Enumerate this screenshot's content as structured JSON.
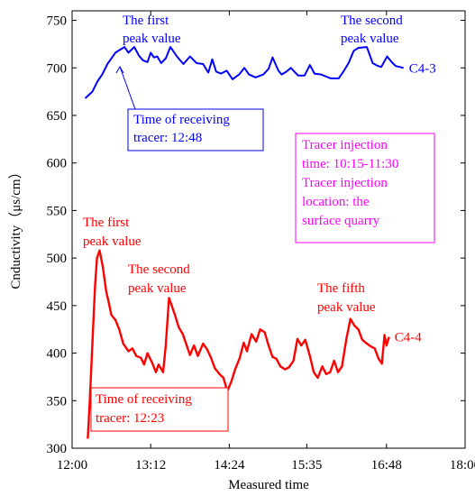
{
  "chart_data": {
    "type": "line",
    "xlabel": "Measured time",
    "ylabel": "Cnductivity（μs/cm）",
    "x_unit": "hours of day",
    "xlim": [
      12.0,
      18.0
    ],
    "ylim": [
      300,
      760
    ],
    "x_ticks": [
      {
        "value": 12.0,
        "label": "12:00"
      },
      {
        "value": 13.2,
        "label": "13:12"
      },
      {
        "value": 14.4,
        "label": "14:24"
      },
      {
        "value": 15.583,
        "label": "15:35"
      },
      {
        "value": 16.8,
        "label": "16:48"
      },
      {
        "value": 18.0,
        "label": "18:00"
      }
    ],
    "y_ticks": [
      300,
      350,
      400,
      450,
      500,
      550,
      600,
      650,
      700,
      750
    ],
    "series": [
      {
        "name": "C4-3",
        "color": "#0000ff",
        "points": [
          [
            12.2,
            668
          ],
          [
            12.31,
            675
          ],
          [
            12.39,
            686
          ],
          [
            12.46,
            693
          ],
          [
            12.54,
            704
          ],
          [
            12.66,
            716
          ],
          [
            12.8,
            722
          ],
          [
            12.86,
            716
          ],
          [
            12.95,
            722
          ],
          [
            13.02,
            713
          ],
          [
            13.08,
            708
          ],
          [
            13.15,
            706
          ],
          [
            13.2,
            716
          ],
          [
            13.25,
            711
          ],
          [
            13.3,
            712
          ],
          [
            13.36,
            705
          ],
          [
            13.43,
            710
          ],
          [
            13.5,
            722
          ],
          [
            13.6,
            712
          ],
          [
            13.7,
            704
          ],
          [
            13.8,
            712
          ],
          [
            13.9,
            705
          ],
          [
            14.0,
            704
          ],
          [
            14.08,
            695
          ],
          [
            14.14,
            709
          ],
          [
            14.2,
            696
          ],
          [
            14.27,
            694
          ],
          [
            14.36,
            697
          ],
          [
            14.45,
            688
          ],
          [
            14.55,
            693
          ],
          [
            14.63,
            700
          ],
          [
            14.7,
            693
          ],
          [
            14.8,
            690
          ],
          [
            14.92,
            693
          ],
          [
            15.0,
            699
          ],
          [
            15.06,
            711
          ],
          [
            15.15,
            697
          ],
          [
            15.2,
            693
          ],
          [
            15.27,
            696
          ],
          [
            15.34,
            700
          ],
          [
            15.45,
            692
          ],
          [
            15.55,
            692
          ],
          [
            15.63,
            703
          ],
          [
            15.7,
            694
          ],
          [
            15.8,
            693
          ],
          [
            15.95,
            689
          ],
          [
            16.07,
            689
          ],
          [
            16.15,
            697
          ],
          [
            16.22,
            705
          ],
          [
            16.3,
            718
          ],
          [
            16.37,
            721
          ],
          [
            16.5,
            722
          ],
          [
            16.59,
            705
          ],
          [
            16.67,
            702
          ],
          [
            16.72,
            701
          ],
          [
            16.81,
            712
          ],
          [
            16.88,
            706
          ],
          [
            16.94,
            702
          ],
          [
            17.06,
            700
          ]
        ]
      },
      {
        "name": "C4-4",
        "color": "#ff0000",
        "points": [
          [
            12.24,
            310
          ],
          [
            12.27,
            350
          ],
          [
            12.31,
            410
          ],
          [
            12.35,
            470
          ],
          [
            12.38,
            500
          ],
          [
            12.42,
            508
          ],
          [
            12.47,
            490
          ],
          [
            12.52,
            465
          ],
          [
            12.56,
            453
          ],
          [
            12.6,
            440
          ],
          [
            12.66,
            435
          ],
          [
            12.72,
            425
          ],
          [
            12.78,
            410
          ],
          [
            12.86,
            402
          ],
          [
            12.92,
            405
          ],
          [
            12.98,
            397
          ],
          [
            13.05,
            395
          ],
          [
            13.1,
            388
          ],
          [
            13.15,
            400
          ],
          [
            13.22,
            390
          ],
          [
            13.28,
            380
          ],
          [
            13.32,
            388
          ],
          [
            13.39,
            380
          ],
          [
            13.43,
            408
          ],
          [
            13.48,
            458
          ],
          [
            13.52,
            450
          ],
          [
            13.57,
            440
          ],
          [
            13.63,
            427
          ],
          [
            13.69,
            420
          ],
          [
            13.74,
            410
          ],
          [
            13.8,
            398
          ],
          [
            13.86,
            408
          ],
          [
            13.92,
            397
          ],
          [
            14.0,
            410
          ],
          [
            14.06,
            404
          ],
          [
            14.12,
            395
          ],
          [
            14.18,
            384
          ],
          [
            14.25,
            378
          ],
          [
            14.31,
            374
          ],
          [
            14.37,
            360
          ],
          [
            14.43,
            370
          ],
          [
            14.49,
            383
          ],
          [
            14.56,
            395
          ],
          [
            14.62,
            411
          ],
          [
            14.67,
            402
          ],
          [
            14.74,
            420
          ],
          [
            14.81,
            412
          ],
          [
            14.87,
            425
          ],
          [
            14.94,
            422
          ],
          [
            15.0,
            408
          ],
          [
            15.06,
            396
          ],
          [
            15.12,
            394
          ],
          [
            15.18,
            386
          ],
          [
            15.25,
            383
          ],
          [
            15.31,
            385
          ],
          [
            15.38,
            392
          ],
          [
            15.44,
            415
          ],
          [
            15.5,
            408
          ],
          [
            15.56,
            414
          ],
          [
            15.63,
            397
          ],
          [
            15.69,
            380
          ],
          [
            15.75,
            374
          ],
          [
            15.82,
            386
          ],
          [
            15.88,
            378
          ],
          [
            15.94,
            380
          ],
          [
            16.0,
            392
          ],
          [
            16.06,
            380
          ],
          [
            16.12,
            386
          ],
          [
            16.19,
            416
          ],
          [
            16.25,
            436
          ],
          [
            16.31,
            429
          ],
          [
            16.37,
            425
          ],
          [
            16.43,
            414
          ],
          [
            16.5,
            410
          ],
          [
            16.56,
            407
          ],
          [
            16.62,
            405
          ],
          [
            16.68,
            394
          ],
          [
            16.73,
            389
          ],
          [
            16.77,
            419
          ],
          [
            16.8,
            408
          ],
          [
            16.84,
            417
          ]
        ]
      }
    ],
    "annotations": [
      {
        "lines": [
          "The first",
          "peak value"
        ],
        "color": "#0000ff"
      },
      {
        "lines": [
          "The second",
          "peak value"
        ],
        "color": "#0000ff"
      },
      {
        "lines": [
          "Time of receiving",
          "tracer: 12:48"
        ],
        "color": "#0000ff",
        "boxed": true
      },
      {
        "lines": [
          "Tracer injection",
          "time: 10:15-11:30",
          "Tracer injection",
          "location: the",
          "surface quarry"
        ],
        "color": "#ff00ff",
        "boxed": true
      },
      {
        "lines": [
          "The first",
          "peak value"
        ],
        "color": "#ff0000"
      },
      {
        "lines": [
          "The second",
          "peak value"
        ],
        "color": "#ff0000"
      },
      {
        "lines": [
          "The fifth",
          "peak value"
        ],
        "color": "#ff0000"
      },
      {
        "lines": [
          "Time of receiving",
          "tracer: 12:23"
        ],
        "color": "#ff0000",
        "boxed": true
      }
    ]
  }
}
